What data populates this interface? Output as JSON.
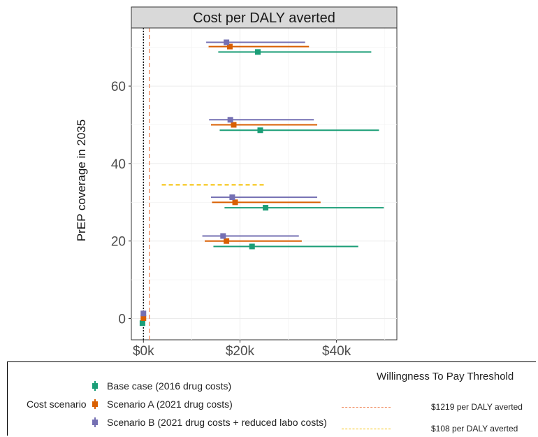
{
  "chart_data": {
    "type": "scatter",
    "title": "Cost per DALY averted",
    "ylabel": "PrEP coverage in 2035",
    "xlabel": "",
    "xlim": [
      -2500,
      52500
    ],
    "ylim": [
      -5.5,
      75
    ],
    "x_ticks": [
      {
        "value": 0,
        "label": "$0k"
      },
      {
        "value": 20000,
        "label": "$20k"
      },
      {
        "value": 40000,
        "label": "$40k"
      }
    ],
    "y_ticks": [
      {
        "value": 0,
        "label": "0"
      },
      {
        "value": 20,
        "label": "20"
      },
      {
        "value": 40,
        "label": "40"
      },
      {
        "value": 60,
        "label": "60"
      }
    ],
    "grid": true,
    "legend_position": "bottom",
    "legend_title": "Cost scenario",
    "series": [
      {
        "name": "Base case (2016 drug costs)",
        "color": "#1b9e77",
        "points": [
          {
            "y": -1.2,
            "x": -200,
            "xmin": -200,
            "xmax": -200
          },
          {
            "y": 18.6,
            "x": 22500,
            "xmin": 14500,
            "xmax": 44500
          },
          {
            "y": 28.6,
            "x": 25300,
            "xmin": 16800,
            "xmax": 49800
          },
          {
            "y": 48.6,
            "x": 24200,
            "xmin": 15800,
            "xmax": 48800
          },
          {
            "y": 68.8,
            "x": 23700,
            "xmin": 15500,
            "xmax": 47200
          }
        ]
      },
      {
        "name": "Scenario A (2021 drug costs)",
        "color": "#d95f02",
        "points": [
          {
            "y": 0.1,
            "x": 0,
            "xmin": 0,
            "xmax": 0
          },
          {
            "y": 20.0,
            "x": 17200,
            "xmin": 12700,
            "xmax": 32800
          },
          {
            "y": 30.0,
            "x": 19000,
            "xmin": 14200,
            "xmax": 36700
          },
          {
            "y": 50.0,
            "x": 18700,
            "xmin": 14000,
            "xmax": 36000
          },
          {
            "y": 70.2,
            "x": 17900,
            "xmin": 13500,
            "xmax": 34300
          }
        ]
      },
      {
        "name": "Scenario B (2021 drug costs + reduced labo costs)",
        "color": "#7570b3",
        "points": [
          {
            "y": 1.3,
            "x": 0,
            "xmin": 0,
            "xmax": 0
          },
          {
            "y": 21.3,
            "x": 16500,
            "xmin": 12200,
            "xmax": 32200
          },
          {
            "y": 31.3,
            "x": 18400,
            "xmin": 14000,
            "xmax": 36000
          },
          {
            "y": 51.3,
            "x": 18000,
            "xmin": 13600,
            "xmax": 35300
          },
          {
            "y": 71.3,
            "x": 17200,
            "xmin": 13000,
            "xmax": 33500
          }
        ]
      }
    ],
    "reference_lines": [
      {
        "orientation": "vertical",
        "x": 0,
        "color": "#000000",
        "style": "dotted"
      },
      {
        "orientation": "vertical",
        "x": 1219,
        "color": "#f08a5d",
        "style": "dashed"
      },
      {
        "orientation": "horizontal",
        "y": 34.5,
        "xmin": 3800,
        "xmax": 25000,
        "color": "#f5c000",
        "style": "dashed"
      }
    ],
    "wtp_legend": {
      "title": "Willingness To Pay Threshold",
      "entries": [
        {
          "label": "$1219 per DALY averted",
          "color": "#f08a5d"
        },
        {
          "label": "$108 per DALY averted",
          "color": "#f5c000"
        }
      ]
    }
  }
}
